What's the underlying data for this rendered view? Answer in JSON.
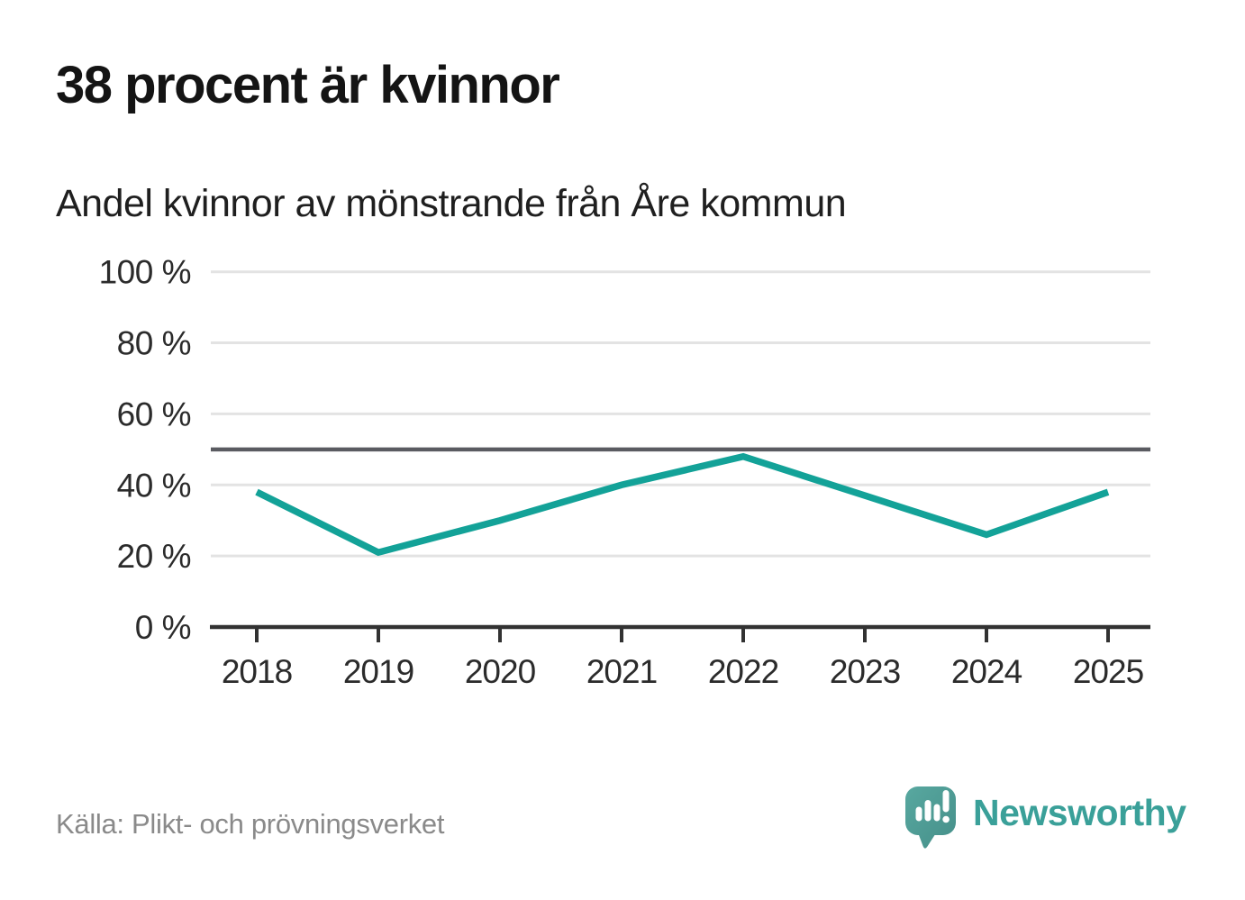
{
  "header": {
    "title": "38 procent är kvinnor",
    "subtitle": "Andel kvinnor av mönstrande från Åre kommun"
  },
  "chart_data": {
    "type": "line",
    "title": "38 procent är kvinnor",
    "subtitle": "Andel kvinnor av mönstrande från Åre kommun",
    "x": [
      "2018",
      "2019",
      "2020",
      "2021",
      "2022",
      "2023",
      "2024",
      "2025"
    ],
    "series": [
      {
        "name": "Andel kvinnor av mönstrande",
        "values": [
          38,
          21,
          30,
          40,
          48,
          37,
          26,
          38
        ]
      }
    ],
    "unit": "%",
    "ylim": [
      0,
      100
    ],
    "yticks": [
      {
        "label": "100 %",
        "value": 100
      },
      {
        "label": "80 %",
        "value": 80
      },
      {
        "label": "60 %",
        "value": 60
      },
      {
        "label": "40 %",
        "value": 40
      },
      {
        "label": "20 %",
        "value": 20
      },
      {
        "label": "0 %",
        "value": 0
      }
    ],
    "reference_line": {
      "value": 50
    },
    "grid": true,
    "legend": "none",
    "colors": {
      "line": "#13a298",
      "grid": "#e3e3e3",
      "reference": "#5a5b61",
      "axis": "#323232",
      "tick_label": "#2b2b2b"
    }
  },
  "footer": {
    "source": "Källa: Plikt- och prövningsverket",
    "logo_text": "Newsworthy",
    "brand_color": "#3aa099"
  }
}
